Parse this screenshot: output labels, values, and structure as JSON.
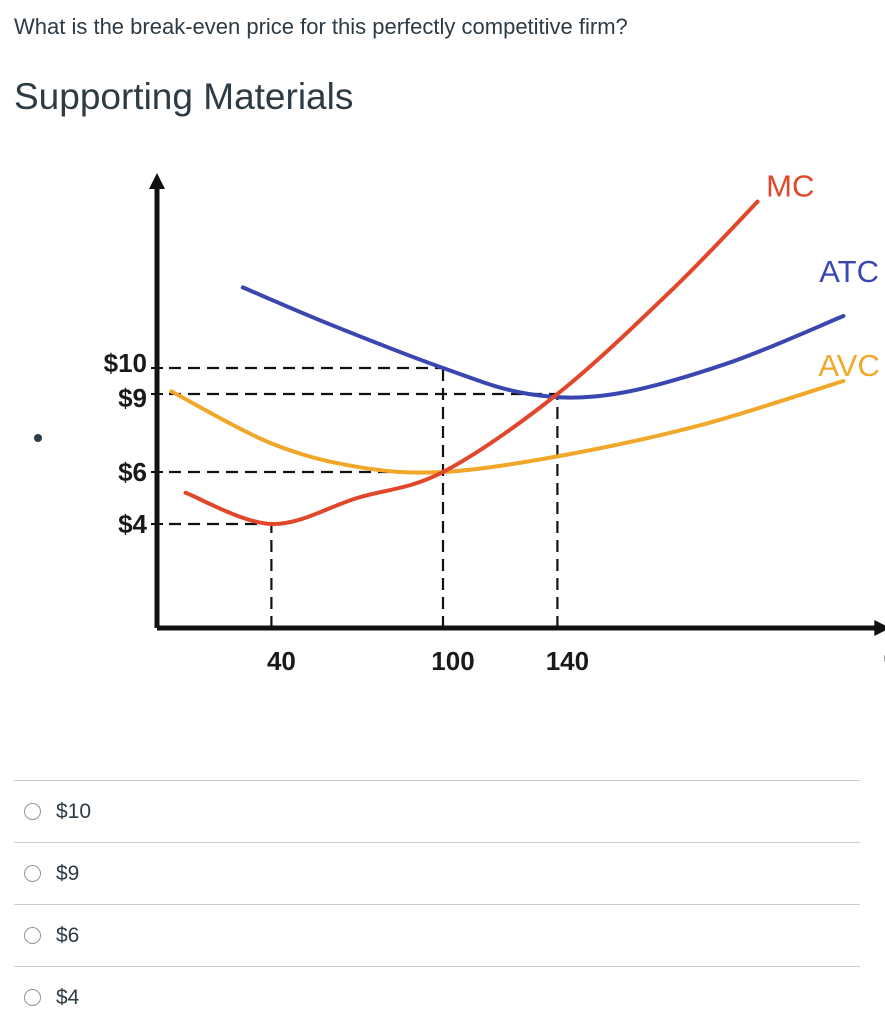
{
  "question": {
    "text": "What is the break-even price for this perfectly competitive firm?"
  },
  "supporting": {
    "title": "Supporting Materials"
  },
  "chart_data": {
    "type": "line",
    "title": "",
    "xlabel": "Q",
    "ylabel": "",
    "y_tick_labels": [
      {
        "label": "$10",
        "value": 10
      },
      {
        "label": "$9",
        "value": 9
      },
      {
        "label": "$6",
        "value": 6
      },
      {
        "label": "$4",
        "value": 4
      }
    ],
    "x_tick_labels": [
      {
        "label": "40",
        "value": 40
      },
      {
        "label": "100",
        "value": 100
      },
      {
        "label": "140",
        "value": 140
      }
    ],
    "series": [
      {
        "name": "MC",
        "color": "#e0472b",
        "points": [
          [
            10,
            5.2
          ],
          [
            40,
            4
          ],
          [
            70,
            5
          ],
          [
            100,
            6
          ],
          [
            140,
            9
          ],
          [
            180,
            13
          ],
          [
            210,
            16.4
          ]
        ]
      },
      {
        "name": "ATC",
        "color": "#3b47b0",
        "points": [
          [
            30,
            13.1
          ],
          [
            60,
            11.7
          ],
          [
            100,
            10
          ],
          [
            130,
            9
          ],
          [
            160,
            9
          ],
          [
            200,
            10.2
          ],
          [
            240,
            12
          ]
        ]
      },
      {
        "name": "AVC",
        "color": "#f0a72a",
        "points": [
          [
            5,
            9.1
          ],
          [
            40,
            7.1
          ],
          [
            70,
            6.2
          ],
          [
            100,
            6
          ],
          [
            140,
            6.6
          ],
          [
            190,
            7.8
          ],
          [
            240,
            9.5
          ]
        ]
      }
    ],
    "guides": [
      {
        "from_x": 0,
        "to_x": 100,
        "y": 10
      },
      {
        "from_x": 0,
        "to_x": 140,
        "y": 9
      },
      {
        "from_x": 0,
        "to_x": 100,
        "y": 6
      },
      {
        "from_x": 0,
        "to_x": 40,
        "y": 4
      },
      {
        "x": 40,
        "from_y": 0,
        "to_y": 4
      },
      {
        "x": 100,
        "from_y": 0,
        "to_y": 10
      },
      {
        "x": 140,
        "from_y": 0,
        "to_y": 9
      }
    ],
    "xlim": [
      0,
      255
    ],
    "ylim": [
      0,
      17.5
    ],
    "grid": false,
    "legend": "curve labels"
  },
  "answers": {
    "options": [
      {
        "label": "$10"
      },
      {
        "label": "$9"
      },
      {
        "label": "$6"
      },
      {
        "label": "$4"
      }
    ]
  }
}
